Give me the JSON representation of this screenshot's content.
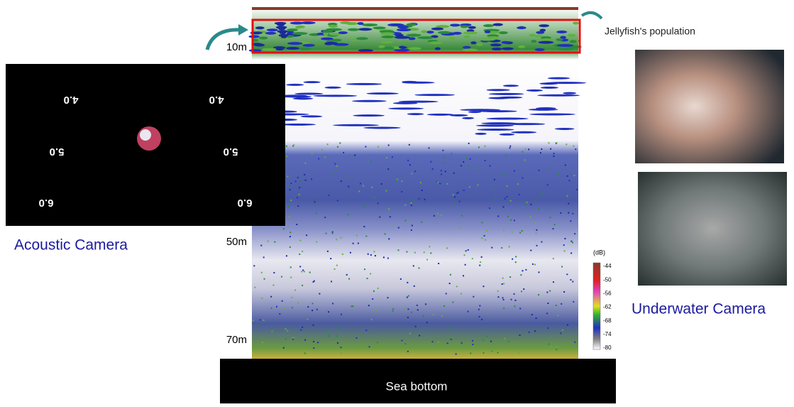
{
  "annotation": "Jellyfish's population",
  "depth_labels": [
    "10m",
    "50m",
    "70m"
  ],
  "acoustic_camera": {
    "caption": "Acoustic Camera",
    "range_labels": [
      "4.0",
      "5.0",
      "6.0"
    ]
  },
  "underwater_camera": {
    "caption": "Underwater Camera"
  },
  "sea_bottom": "Sea bottom",
  "color_scale": {
    "unit": "(dB)",
    "levels": [
      -44,
      -50,
      -56,
      -62,
      -68,
      -74,
      -80
    ]
  }
}
